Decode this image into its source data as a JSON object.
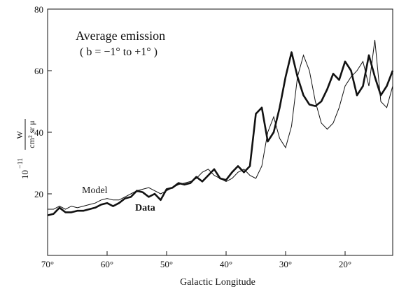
{
  "chart_data": {
    "type": "line",
    "title": "Average emission",
    "subtitle": "( b = −1° to +1° )",
    "xlabel": "Galactic Longitude",
    "ylabel": {
      "prefix": "10",
      "exponent": "−11",
      "unit_numerator": "W",
      "unit_denominator": "cm² sr μ"
    },
    "x_reversed": true,
    "xlim": [
      70,
      12
    ],
    "ylim": [
      0,
      80
    ],
    "x_ticks": [
      {
        "value": 70,
        "label": "70°"
      },
      {
        "value": 60,
        "label": "60°"
      },
      {
        "value": 50,
        "label": "50°"
      },
      {
        "value": 40,
        "label": "40°"
      },
      {
        "value": 30,
        "label": "30°"
      },
      {
        "value": 20,
        "label": "20°"
      }
    ],
    "y_ticks": [
      {
        "value": 20,
        "label": "20"
      },
      {
        "value": 40,
        "label": "40"
      },
      {
        "value": 60,
        "label": "60"
      },
      {
        "value": 80,
        "label": "80"
      }
    ],
    "grid": false,
    "series": [
      {
        "name": "Model",
        "x": [
          70,
          69,
          68,
          67,
          66,
          65,
          64,
          63,
          62,
          61,
          60,
          59,
          58,
          57,
          56,
          55,
          54,
          53,
          52,
          51,
          50,
          49,
          48,
          47,
          46,
          45,
          44,
          43,
          42,
          41,
          40,
          39,
          38,
          37,
          36,
          35,
          34,
          33,
          32,
          31,
          30,
          29,
          28,
          27,
          26,
          25,
          24,
          23,
          22,
          21,
          20,
          19,
          18,
          17,
          16,
          15,
          14,
          13,
          12
        ],
        "y": [
          15,
          15,
          16,
          15,
          16,
          15.5,
          16,
          16.5,
          17,
          18,
          18.5,
          18,
          18,
          19,
          20,
          21,
          21.5,
          22,
          21,
          20,
          21,
          22,
          23,
          23.5,
          24,
          25,
          27,
          28,
          26,
          25,
          24,
          25,
          27,
          28,
          26,
          25,
          29,
          40,
          45,
          38,
          35,
          42,
          58,
          65,
          60,
          50,
          43,
          41,
          43,
          48,
          55,
          58,
          60,
          63,
          55,
          70,
          50,
          48,
          55
        ]
      },
      {
        "name": "Data",
        "x": [
          70,
          69,
          68,
          67,
          66,
          65,
          64,
          63,
          62,
          61,
          60,
          59,
          58,
          57,
          56,
          55,
          54,
          53,
          52,
          51,
          50,
          49,
          48,
          47,
          46,
          45,
          44,
          43,
          42,
          41,
          40,
          39,
          38,
          37,
          36,
          35,
          34,
          33,
          32,
          31,
          30,
          29,
          28,
          27,
          26,
          25,
          24,
          23,
          22,
          21,
          20,
          19,
          18,
          17,
          16,
          15,
          14,
          13,
          12
        ],
        "y": [
          13,
          13.5,
          15.5,
          14,
          14,
          14.5,
          14.5,
          15,
          15.5,
          16.5,
          17,
          16,
          17,
          18.5,
          19,
          21,
          20.5,
          19,
          20,
          18,
          21.5,
          22,
          23.5,
          23,
          23.5,
          25.5,
          24,
          26,
          28,
          25,
          24.5,
          27,
          29,
          27,
          29,
          46,
          48,
          37,
          40,
          48,
          58,
          66,
          58,
          52,
          49,
          48.5,
          50,
          54,
          59,
          57,
          63,
          60,
          52,
          55,
          65,
          58,
          52,
          55,
          60
        ]
      }
    ],
    "annotations": [
      {
        "text": "Model",
        "series": "Model"
      },
      {
        "text": "Data",
        "series": "Data"
      }
    ]
  }
}
